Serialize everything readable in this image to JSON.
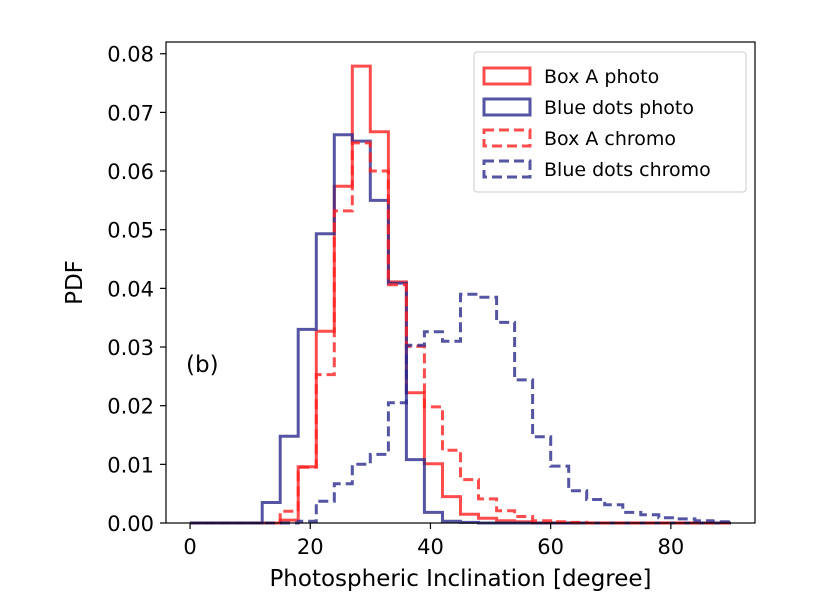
{
  "chart_data": {
    "type": "step-histogram",
    "panel_label": "(b)",
    "xlabel": "Photospheric Inclination [degree]",
    "ylabel": "PDF",
    "xlim": [
      -4,
      94
    ],
    "ylim": [
      0,
      0.082
    ],
    "xticks": [
      0,
      20,
      40,
      60,
      80
    ],
    "xtick_labels": [
      "0",
      "20",
      "40",
      "60",
      "80"
    ],
    "yticks": [
      0.0,
      0.01,
      0.02,
      0.03,
      0.04,
      0.05,
      0.06,
      0.07,
      0.08
    ],
    "ytick_labels": [
      "0.00",
      "0.01",
      "0.02",
      "0.03",
      "0.04",
      "0.05",
      "0.06",
      "0.07",
      "0.08"
    ],
    "grid": false,
    "legend_position": "top-right",
    "bin_edges": [
      0,
      3,
      6,
      9,
      12,
      15,
      18,
      21,
      24,
      27,
      30,
      33,
      36,
      39,
      42,
      45,
      48,
      51,
      54,
      57,
      60,
      63,
      66,
      69,
      72,
      75,
      78,
      81,
      84,
      87,
      90
    ],
    "series": [
      {
        "name": "Box A photo",
        "color": "#ff2020",
        "linestyle": "solid",
        "values": [
          0,
          0,
          0,
          0,
          0,
          0.0005,
          0.0096,
          0.0327,
          0.0574,
          0.0779,
          0.0667,
          0.0411,
          0.0222,
          0.0101,
          0.0045,
          0.0015,
          0.0008,
          0.0004,
          0.0002,
          0,
          0,
          0,
          0,
          0,
          0,
          0,
          0,
          0,
          0,
          0
        ]
      },
      {
        "name": "Blue dots photo",
        "color": "#2b2b8c",
        "linestyle": "solid",
        "values": [
          0,
          0,
          0,
          0,
          0.0035,
          0.0148,
          0.033,
          0.0493,
          0.0662,
          0.0651,
          0.055,
          0.0409,
          0.0108,
          0.0018,
          0.0003,
          0.0001,
          0,
          0,
          0,
          0,
          0,
          0,
          0,
          0,
          0,
          0,
          0,
          0,
          0,
          0
        ]
      },
      {
        "name": "Box A chromo",
        "color": "#ff2020",
        "linestyle": "dashed",
        "values": [
          0,
          0,
          0,
          0,
          0,
          0.002,
          0.0095,
          0.0253,
          0.0532,
          0.0648,
          0.06,
          0.0406,
          0.0301,
          0.0198,
          0.0124,
          0.0074,
          0.0041,
          0.0021,
          0.0011,
          0.0004,
          0.0002,
          0.0001,
          0,
          0,
          0,
          0,
          0,
          0,
          0,
          0
        ]
      },
      {
        "name": "Blue dots chromo",
        "color": "#2b2b8c",
        "linestyle": "dashed",
        "values": [
          0,
          0,
          0,
          0,
          0,
          0,
          0.0003,
          0.0037,
          0.0067,
          0.01,
          0.0117,
          0.0205,
          0.0303,
          0.0326,
          0.031,
          0.039,
          0.0385,
          0.0342,
          0.0244,
          0.0147,
          0.0097,
          0.0055,
          0.004,
          0.0031,
          0.0018,
          0.0014,
          0.0009,
          0.0007,
          0.0004,
          0.0002
        ]
      }
    ]
  }
}
